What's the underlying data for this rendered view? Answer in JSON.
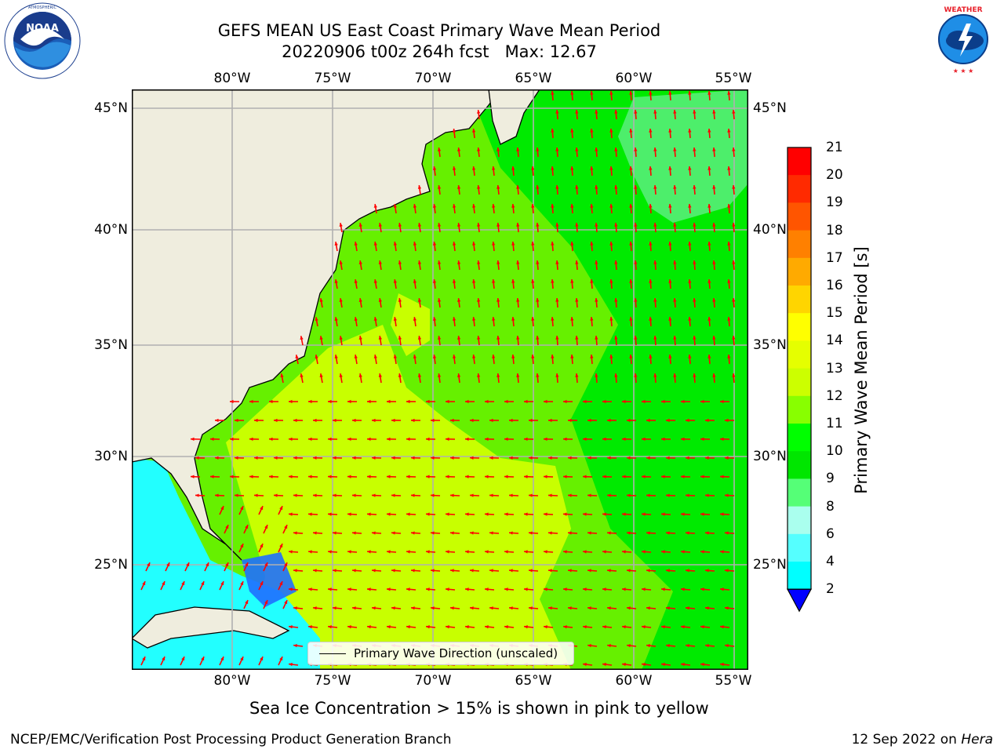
{
  "title": {
    "line1": "GEFS MEAN US East Coast Primary Wave Mean Period",
    "line2": "20220906 t00z 264h fcst   Max: 12.67"
  },
  "logos": {
    "left": "noaa-logo",
    "right": "national-weather-service-logo",
    "right_text": "NATIONAL WEATHER SERVICE"
  },
  "map": {
    "lon_labels": [
      "80°W",
      "75°W",
      "70°W",
      "65°W",
      "60°W",
      "55°W"
    ],
    "lat_labels": [
      "45°N",
      "40°N",
      "35°N",
      "30°N",
      "25°N"
    ],
    "lon_range": [
      -85,
      -54.4
    ],
    "lat_range": [
      20.5,
      46
    ],
    "legend_label": "Primary Wave Direction (unscaled)",
    "arrow_color": "#ff0000",
    "land_color": "#efedde",
    "grid_color": "#b0b0b0"
  },
  "colorbar": {
    "label": "Primary Wave Mean Period [s]",
    "ticks": [
      "21",
      "20",
      "19",
      "18",
      "17",
      "16",
      "15",
      "14",
      "13",
      "12",
      "11",
      "10",
      "9",
      "8",
      "6",
      "4",
      "2"
    ],
    "colors": [
      "#ff0000",
      "#ff2a00",
      "#ff5500",
      "#ff8000",
      "#ffaa00",
      "#ffd500",
      "#ffff00",
      "#e5ff00",
      "#ccff00",
      "#88ff00",
      "#00ff00",
      "#00e600",
      "#55ff77",
      "#aaffee",
      "#55ffff",
      "#00ffff",
      "#0099ff",
      "#0033ff"
    ],
    "extend_color": "#0000ff"
  },
  "notes": {
    "sea_ice": "Sea Ice Concentration > 15% is shown in pink to yellow",
    "branch": "NCEP/EMC/Verification Post Processing Product Generation Branch",
    "date_prefix": "12 Sep 2022 on ",
    "machine": "Hera"
  }
}
